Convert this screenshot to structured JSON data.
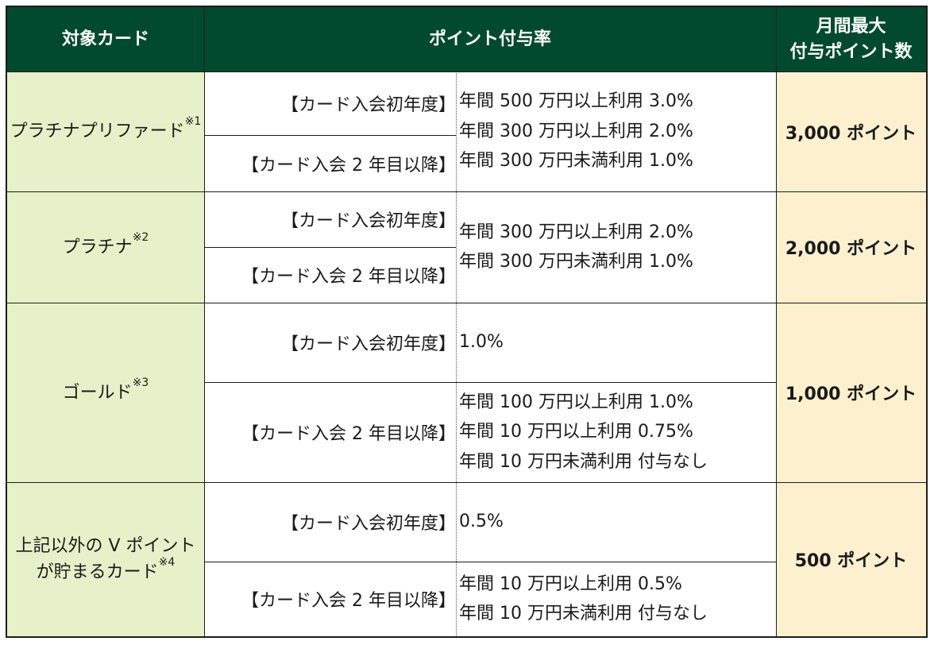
{
  "header": {
    "target_card": "対象カード",
    "point_rate": "ポイント付与率",
    "monthly_max_line1": "月間最大",
    "monthly_max_line2": "付与ポイント数"
  },
  "rows": [
    {
      "card_name": "プラチナプリファード",
      "note": "※1",
      "first_year": "【カード入会初年度】",
      "second_year": "【カード入会 2 年目以降】",
      "rates": [
        "年間 500 万円以上利用 3.0%",
        "年間 300 万円以上利用 2.0%",
        "年間 300 万円未満利用 1.0%"
      ],
      "max_points": "3,000 ポイント"
    },
    {
      "card_name": "プラチナ",
      "note": "※2",
      "first_year": "【カード入会初年度】",
      "second_year": "【カード入会 2 年目以降】",
      "rates": [
        "年間 300 万円以上利用 2.0%",
        "年間 300 万円未満利用 1.0%"
      ],
      "max_points": "2,000 ポイント"
    },
    {
      "card_name": "ゴールド",
      "note": "※3",
      "first_year": "【カード入会初年度】",
      "first_year_rate": "1.0%",
      "second_year": "【カード入会 2 年目以降】",
      "second_year_rates": [
        "年間 100 万円以上利用 1.0%",
        "年間 10 万円以上利用 0.75%",
        "年間 10 万円未満利用 付与なし"
      ],
      "max_points": "1,000 ポイント"
    },
    {
      "card_name_line1": "上記以外の V ポイント",
      "card_name_line2": "が貯まるカード",
      "note": "※4",
      "first_year": "【カード入会初年度】",
      "first_year_rate": "0.5%",
      "second_year": "【カード入会 2 年目以降】",
      "second_year_rates": [
        "年間 10 万円以上利用 0.5%",
        "年間 10 万円未満利用 付与なし"
      ],
      "max_points": "500 ポイント"
    }
  ]
}
